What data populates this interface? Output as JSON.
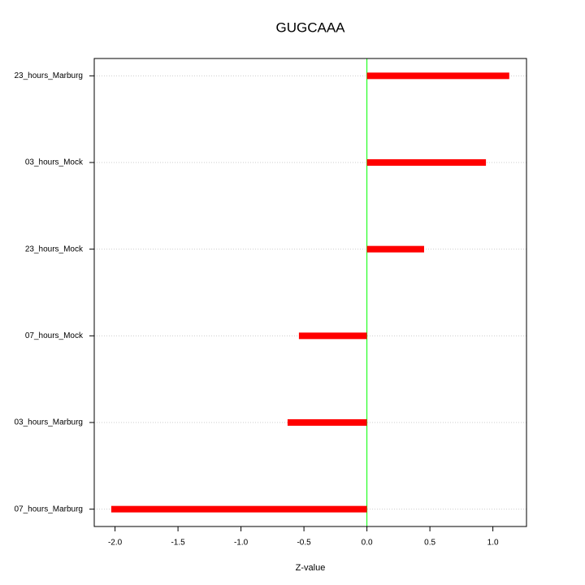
{
  "chart_data": {
    "type": "hbar",
    "title": "GUGCAAA",
    "xlabel": "Z-value",
    "categories": [
      "23_hours_Marburg",
      "03_hours_Mock",
      "23_hours_Mock",
      "07_hours_Mock",
      "03_hours_Marburg",
      "07_hours_Marburg"
    ],
    "values": [
      1.13,
      0.945,
      0.454,
      -0.54,
      -0.63,
      -2.03
    ],
    "color": "#ff0000",
    "zero_line_color": "#00ff00",
    "xlim": [
      -2.165,
      1.267
    ],
    "xticks": [
      {
        "value": -2,
        "label": "-2.0"
      },
      -1.5,
      {
        "value": -1,
        "label": "-1.0"
      },
      -0.5,
      {
        "value": 0,
        "label": "0.0"
      },
      0.5,
      {
        "value": 1,
        "label": "1.0"
      }
    ],
    "grid": true
  }
}
